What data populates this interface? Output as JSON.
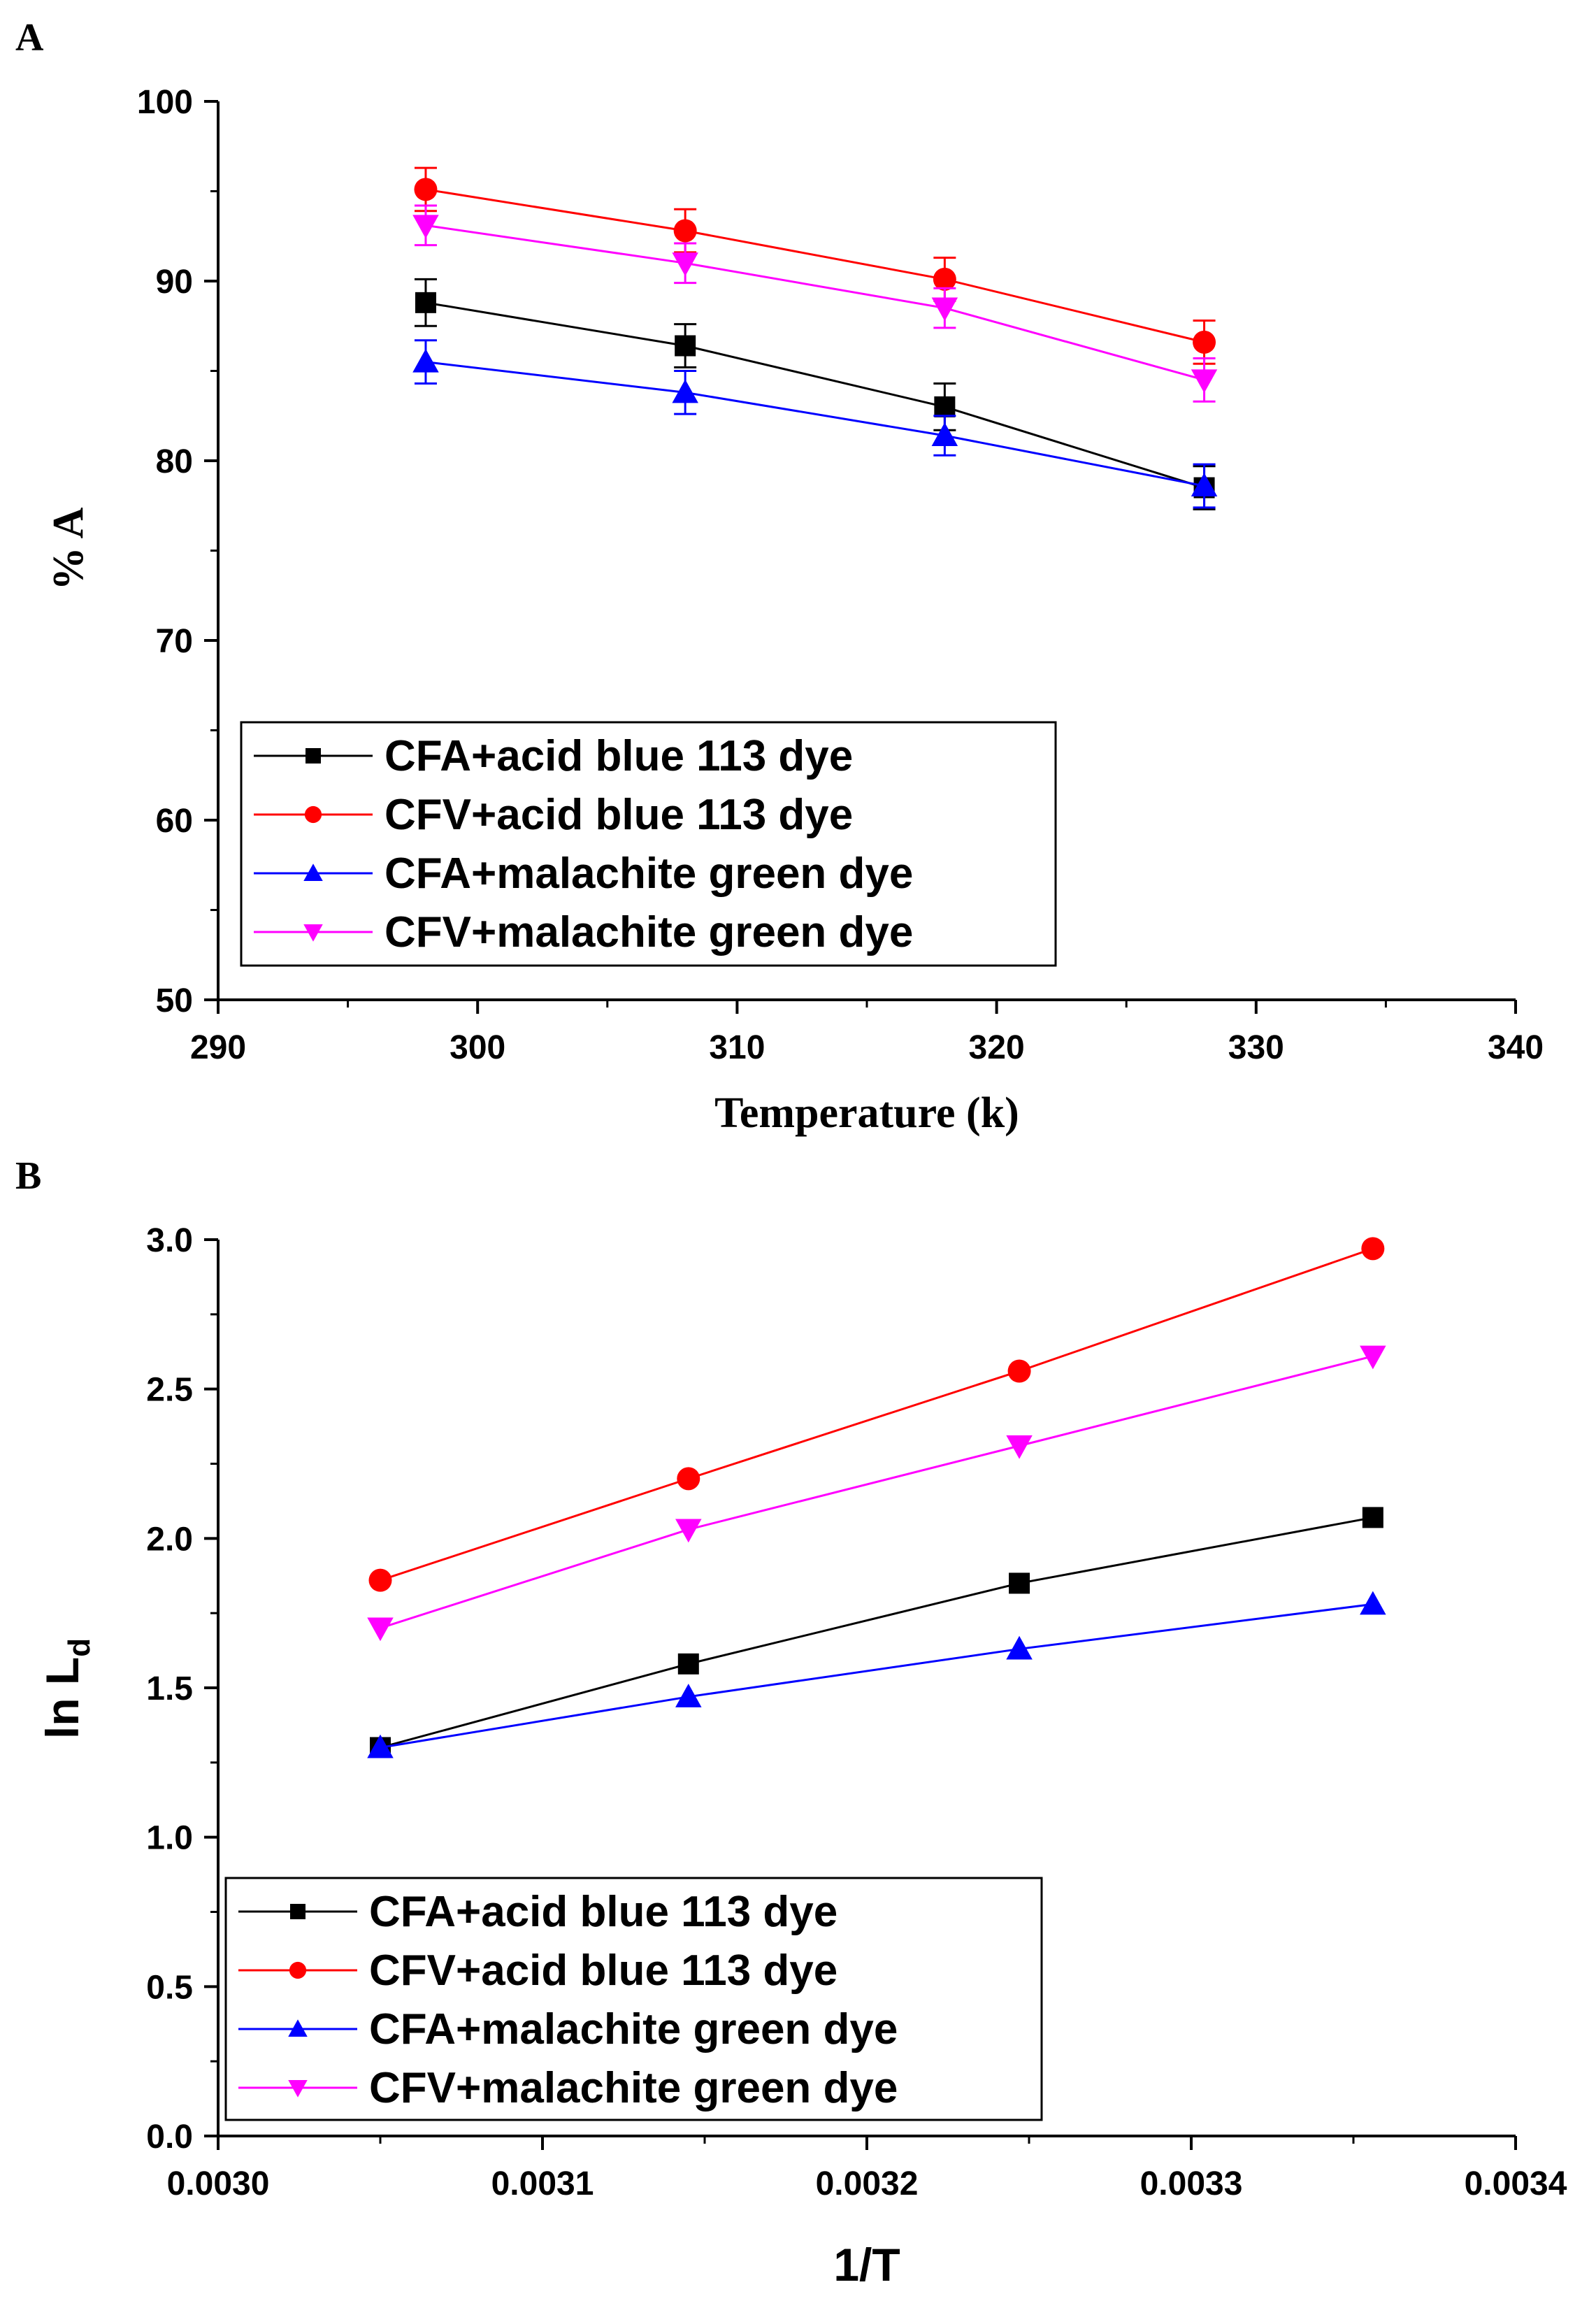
{
  "chart_data": [
    {
      "panel": "A",
      "type": "line",
      "xlabel": "Temperature (k)",
      "ylabel": "% A",
      "xlim": [
        290,
        340
      ],
      "ylim": [
        50,
        100
      ],
      "xticks": [
        "290",
        "300",
        "310",
        "320",
        "330",
        "340"
      ],
      "yticks": [
        "50",
        "60",
        "70",
        "80",
        "90",
        "100"
      ],
      "x": [
        298,
        308,
        318,
        328
      ],
      "error_bars": true,
      "legend_position": "bottom-left",
      "series": [
        {
          "name": "CFA+acid blue 113 dye",
          "color": "#000000",
          "marker": "square",
          "values": [
            88.8,
            86.4,
            83.0,
            78.5
          ],
          "errors": [
            1.3,
            1.2,
            1.3,
            1.2
          ]
        },
        {
          "name": "CFV+acid blue 113 dye",
          "color": "#ff0000",
          "marker": "circle",
          "values": [
            95.1,
            92.8,
            90.1,
            86.6
          ],
          "errors": [
            1.2,
            1.2,
            1.2,
            1.2
          ]
        },
        {
          "name": "CFA+malachite green dye",
          "color": "#0000ff",
          "marker": "triangle-up",
          "values": [
            85.5,
            83.8,
            81.4,
            78.6
          ],
          "errors": [
            1.2,
            1.2,
            1.1,
            1.2
          ]
        },
        {
          "name": "CFV+malachite green dye",
          "color": "#ff00ff",
          "marker": "triangle-down",
          "values": [
            93.1,
            91.0,
            88.5,
            84.5
          ],
          "errors": [
            1.1,
            1.1,
            1.1,
            1.2
          ]
        }
      ]
    },
    {
      "panel": "B",
      "type": "line",
      "xlabel": "1/T",
      "ylabel_main": "ln L",
      "ylabel_sub": "d",
      "xlim": [
        0.003,
        0.0034
      ],
      "ylim": [
        0.0,
        3.0
      ],
      "xticks": [
        "0.0030",
        "0.0031",
        "0.0032",
        "0.0033",
        "0.0034"
      ],
      "yticks": [
        "0.0",
        "0.5",
        "1.0",
        "1.5",
        "2.0",
        "2.5",
        "3.0"
      ],
      "x": [
        0.00305,
        0.003145,
        0.003247,
        0.003356
      ],
      "error_bars": false,
      "legend_position": "bottom-left",
      "series": [
        {
          "name": "CFA+acid blue 113 dye",
          "color": "#000000",
          "marker": "square",
          "values": [
            1.3,
            1.58,
            1.85,
            2.07
          ]
        },
        {
          "name": "CFV+acid blue 113 dye",
          "color": "#ff0000",
          "marker": "circle",
          "values": [
            1.86,
            2.2,
            2.56,
            2.97
          ]
        },
        {
          "name": "CFA+malachite green dye",
          "color": "#0000ff",
          "marker": "triangle-up",
          "values": [
            1.3,
            1.47,
            1.63,
            1.78
          ]
        },
        {
          "name": "CFV+malachite green dye",
          "color": "#ff00ff",
          "marker": "triangle-down",
          "values": [
            1.7,
            2.03,
            2.31,
            2.61
          ]
        }
      ]
    }
  ]
}
